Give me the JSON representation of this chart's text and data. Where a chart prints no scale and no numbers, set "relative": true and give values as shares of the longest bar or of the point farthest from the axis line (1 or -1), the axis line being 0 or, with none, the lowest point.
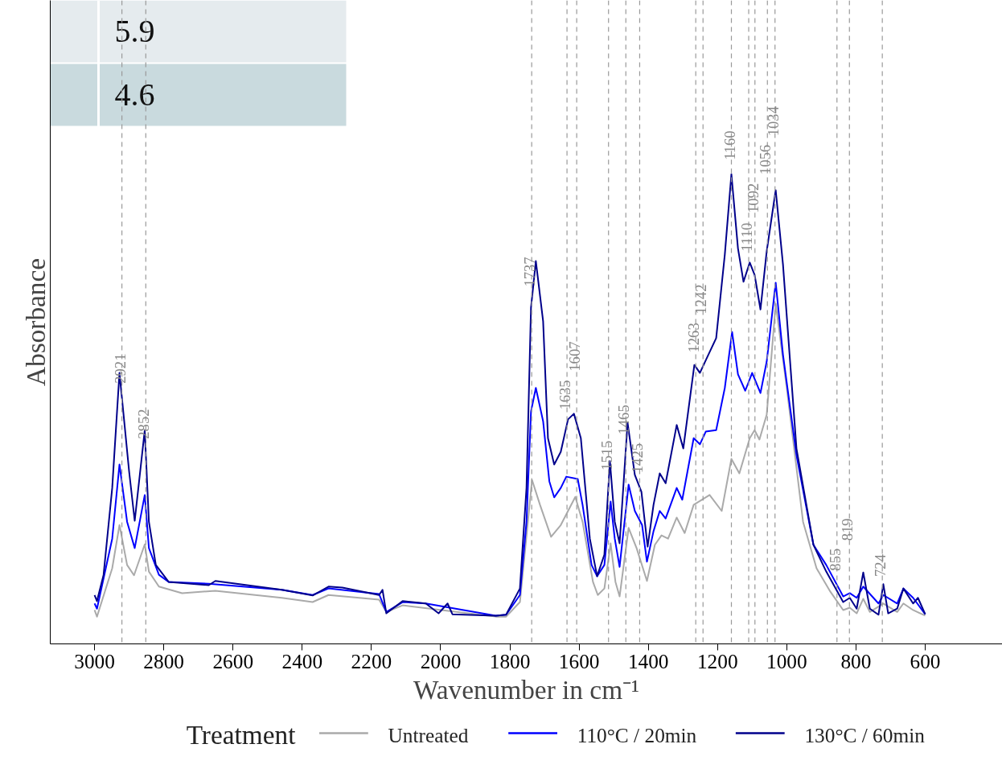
{
  "chart_data": {
    "type": "line",
    "relative": true,
    "xlabel": "Wavenumber in cm⁻¹",
    "ylabel": "Absorbance",
    "legend_title": "Treatment",
    "legend": "bottom",
    "grid": false,
    "xlim": [
      3128,
      377
    ],
    "xticks": [
      3000,
      2800,
      2600,
      2400,
      2200,
      2000,
      1800,
      1600,
      1400,
      1200,
      1000,
      800,
      600
    ],
    "annotations": [
      "5.9",
      "4.6"
    ],
    "ref_lines": [
      {
        "axis": "x",
        "value": 2921,
        "label": "2921",
        "color": "#999999",
        "line_style": "dashed"
      },
      {
        "axis": "x",
        "value": 2852,
        "label": "2852",
        "color": "#999999",
        "line_style": "dashed"
      },
      {
        "axis": "x",
        "value": 1737,
        "label": "1737",
        "color": "#999999",
        "line_style": "dashed"
      },
      {
        "axis": "x",
        "value": 1635,
        "label": "1635",
        "color": "#999999",
        "line_style": "dashed"
      },
      {
        "axis": "x",
        "value": 1607,
        "label": "1607",
        "color": "#999999",
        "line_style": "dashed"
      },
      {
        "axis": "x",
        "value": 1515,
        "label": "1515",
        "color": "#999999",
        "line_style": "dashed"
      },
      {
        "axis": "x",
        "value": 1465,
        "label": "1465",
        "color": "#999999",
        "line_style": "dashed"
      },
      {
        "axis": "x",
        "value": 1425,
        "label": "1425",
        "color": "#999999",
        "line_style": "dashed"
      },
      {
        "axis": "x",
        "value": 1263,
        "label": "1263",
        "color": "#999999",
        "line_style": "dashed"
      },
      {
        "axis": "x",
        "value": 1242,
        "label": "1242",
        "color": "#999999",
        "line_style": "dashed"
      },
      {
        "axis": "x",
        "value": 1160,
        "label": "1160",
        "color": "#999999",
        "line_style": "dashed"
      },
      {
        "axis": "x",
        "value": 1110,
        "label": "1110",
        "color": "#999999",
        "line_style": "dashed"
      },
      {
        "axis": "x",
        "value": 1092,
        "label": "1092",
        "color": "#999999",
        "line_style": "dashed"
      },
      {
        "axis": "x",
        "value": 1056,
        "label": "1056",
        "color": "#999999",
        "line_style": "dashed"
      },
      {
        "axis": "x",
        "value": 1034,
        "label": "1034",
        "color": "#999999",
        "line_style": "dashed"
      },
      {
        "axis": "x",
        "value": 855,
        "label": "855",
        "color": "#999999",
        "line_style": "dashed"
      },
      {
        "axis": "x",
        "value": 819,
        "label": "819",
        "color": "#999999",
        "line_style": "dashed"
      },
      {
        "axis": "x",
        "value": 724,
        "label": "724",
        "color": "#999999",
        "line_style": "dashed"
      }
    ],
    "series": [
      {
        "name": "Untreated",
        "color": "#aaaaaa",
        "x": [
          3000,
          2993,
          2949,
          2928,
          2906,
          2886,
          2855,
          2843,
          2814,
          2747,
          2651,
          2459,
          2370,
          2324,
          2178,
          2157,
          2110,
          1841,
          1811,
          1771,
          1748,
          1736,
          1713,
          1681,
          1653,
          1611,
          1590,
          1560,
          1546,
          1527,
          1509,
          1495,
          1483,
          1457,
          1434,
          1404,
          1381,
          1362,
          1343,
          1318,
          1295,
          1269,
          1223,
          1188,
          1160,
          1137,
          1107,
          1093,
          1079,
          1058,
          1032,
          1000,
          953,
          914,
          874,
          837,
          818,
          798,
          779,
          760,
          721,
          681,
          663,
          635,
          600
        ],
        "values": [
          0.072,
          0.058,
          0.161,
          0.253,
          0.168,
          0.146,
          0.212,
          0.154,
          0.122,
          0.108,
          0.113,
          0.098,
          0.089,
          0.104,
          0.094,
          0.068,
          0.082,
          0.058,
          0.058,
          0.089,
          0.26,
          0.349,
          0.296,
          0.228,
          0.253,
          0.313,
          0.26,
          0.132,
          0.104,
          0.118,
          0.214,
          0.132,
          0.101,
          0.247,
          0.204,
          0.134,
          0.211,
          0.231,
          0.224,
          0.269,
          0.236,
          0.296,
          0.317,
          0.283,
          0.394,
          0.363,
          0.438,
          0.455,
          0.435,
          0.488,
          0.724,
          0.545,
          0.26,
          0.161,
          0.111,
          0.072,
          0.077,
          0.065,
          0.096,
          0.068,
          0.086,
          0.068,
          0.086,
          0.072,
          0.06
        ]
      },
      {
        "name": "110°C / 20min",
        "color": "#0000ff",
        "x": [
          3000,
          2993,
          2949,
          2928,
          2906,
          2884,
          2855,
          2843,
          2814,
          2786,
          2670,
          2459,
          2370,
          2324,
          2178,
          2157,
          2110,
          2043,
          1841,
          1811,
          1771,
          1752,
          1739,
          1725,
          1704,
          1686,
          1672,
          1653,
          1637,
          1604,
          1590,
          1564,
          1548,
          1527,
          1509,
          1497,
          1483,
          1457,
          1439,
          1418,
          1404,
          1385,
          1367,
          1350,
          1318,
          1302,
          1269,
          1251,
          1234,
          1204,
          1179,
          1158,
          1141,
          1120,
          1100,
          1076,
          1058,
          1032,
          1011,
          972,
          923,
          886,
          837,
          818,
          798,
          779,
          735,
          721,
          681,
          663,
          635,
          600
        ],
        "values": [
          0.086,
          0.075,
          0.224,
          0.382,
          0.26,
          0.204,
          0.317,
          0.204,
          0.147,
          0.132,
          0.128,
          0.115,
          0.104,
          0.118,
          0.106,
          0.068,
          0.089,
          0.086,
          0.06,
          0.062,
          0.104,
          0.26,
          0.495,
          0.545,
          0.474,
          0.346,
          0.312,
          0.332,
          0.356,
          0.351,
          0.296,
          0.168,
          0.144,
          0.168,
          0.303,
          0.224,
          0.164,
          0.339,
          0.283,
          0.253,
          0.175,
          0.24,
          0.283,
          0.267,
          0.332,
          0.307,
          0.438,
          0.425,
          0.452,
          0.455,
          0.545,
          0.664,
          0.574,
          0.539,
          0.577,
          0.534,
          0.601,
          0.769,
          0.616,
          0.402,
          0.211,
          0.168,
          0.101,
          0.108,
          0.098,
          0.122,
          0.086,
          0.104,
          0.086,
          0.118,
          0.098,
          0.063
        ]
      },
      {
        "name": "130°C / 60min",
        "color": "#00008b",
        "x": [
          3000,
          2993,
          2974,
          2949,
          2928,
          2900,
          2884,
          2855,
          2843,
          2823,
          2786,
          2670,
          2651,
          2459,
          2370,
          2324,
          2284,
          2178,
          2168,
          2157,
          2110,
          2043,
          2006,
          1980,
          1966,
          1841,
          1811,
          1771,
          1752,
          1739,
          1725,
          1704,
          1690,
          1672,
          1653,
          1632,
          1615,
          1595,
          1569,
          1548,
          1527,
          1511,
          1497,
          1483,
          1460,
          1439,
          1420,
          1402,
          1385,
          1367,
          1350,
          1318,
          1299,
          1267,
          1251,
          1234,
          1204,
          1179,
          1160,
          1141,
          1125,
          1107,
          1093,
          1076,
          1058,
          1032,
          1011,
          972,
          923,
          886,
          837,
          818,
          798,
          779,
          760,
          735,
          721,
          707,
          681,
          663,
          635,
          621,
          600
        ],
        "values": [
          0.104,
          0.091,
          0.147,
          0.332,
          0.577,
          0.366,
          0.262,
          0.455,
          0.26,
          0.168,
          0.132,
          0.125,
          0.134,
          0.115,
          0.103,
          0.122,
          0.12,
          0.104,
          0.115,
          0.065,
          0.091,
          0.086,
          0.065,
          0.086,
          0.063,
          0.06,
          0.062,
          0.118,
          0.332,
          0.716,
          0.815,
          0.687,
          0.438,
          0.382,
          0.409,
          0.478,
          0.49,
          0.438,
          0.224,
          0.144,
          0.19,
          0.389,
          0.26,
          0.214,
          0.471,
          0.36,
          0.324,
          0.207,
          0.296,
          0.363,
          0.342,
          0.466,
          0.416,
          0.594,
          0.577,
          0.604,
          0.651,
          0.829,
          1,
          0.842,
          0.771,
          0.812,
          0.786,
          0.712,
          0.836,
          0.966,
          0.808,
          0.416,
          0.211,
          0.154,
          0.089,
          0.098,
          0.075,
          0.152,
          0.075,
          0.062,
          0.127,
          0.065,
          0.075,
          0.118,
          0.086,
          0.098,
          0.063
        ]
      }
    ]
  }
}
